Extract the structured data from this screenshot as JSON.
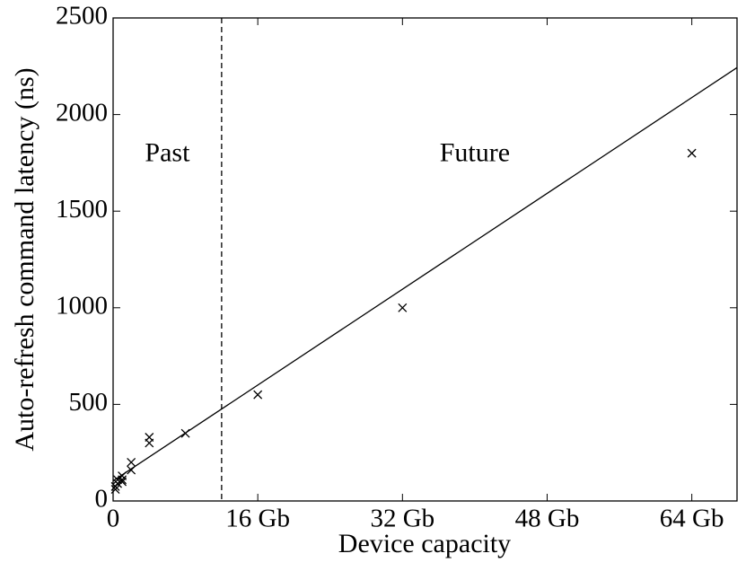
{
  "chart_data": {
    "type": "scatter",
    "x_label": "Device capacity",
    "y_label": "Auto-refresh command latency (ns)",
    "x": [
      64,
      32,
      16,
      8,
      4,
      4,
      2,
      2,
      1,
      1,
      1,
      0.5,
      0.5,
      0.25,
      0.25
    ],
    "values": [
      1800,
      1000,
      550,
      350,
      330,
      300,
      200,
      160,
      130,
      110,
      100,
      110,
      90,
      75,
      60
    ],
    "color": "#000000",
    "fit_line": {
      "x": [
        0,
        69
      ],
      "y": [
        104,
        2243
      ]
    },
    "divider_x": 12,
    "annotations": [
      {
        "text": "Past",
        "x": 6,
        "y": 1790
      },
      {
        "text": "Future",
        "x": 40,
        "y": 1790
      }
    ],
    "xlim": [
      0,
      69
    ],
    "xticks": [
      0,
      {
        "value": 16,
        "label": "16 Gb"
      },
      {
        "value": 32,
        "label": "32 Gb"
      },
      {
        "value": 48,
        "label": "48 Gb"
      },
      {
        "value": 64,
        "label": "64 Gb"
      }
    ],
    "ylim": [
      0,
      2500
    ],
    "yticks": [
      0,
      500,
      1000,
      1500,
      2000,
      2500
    ],
    "grid": false
  }
}
